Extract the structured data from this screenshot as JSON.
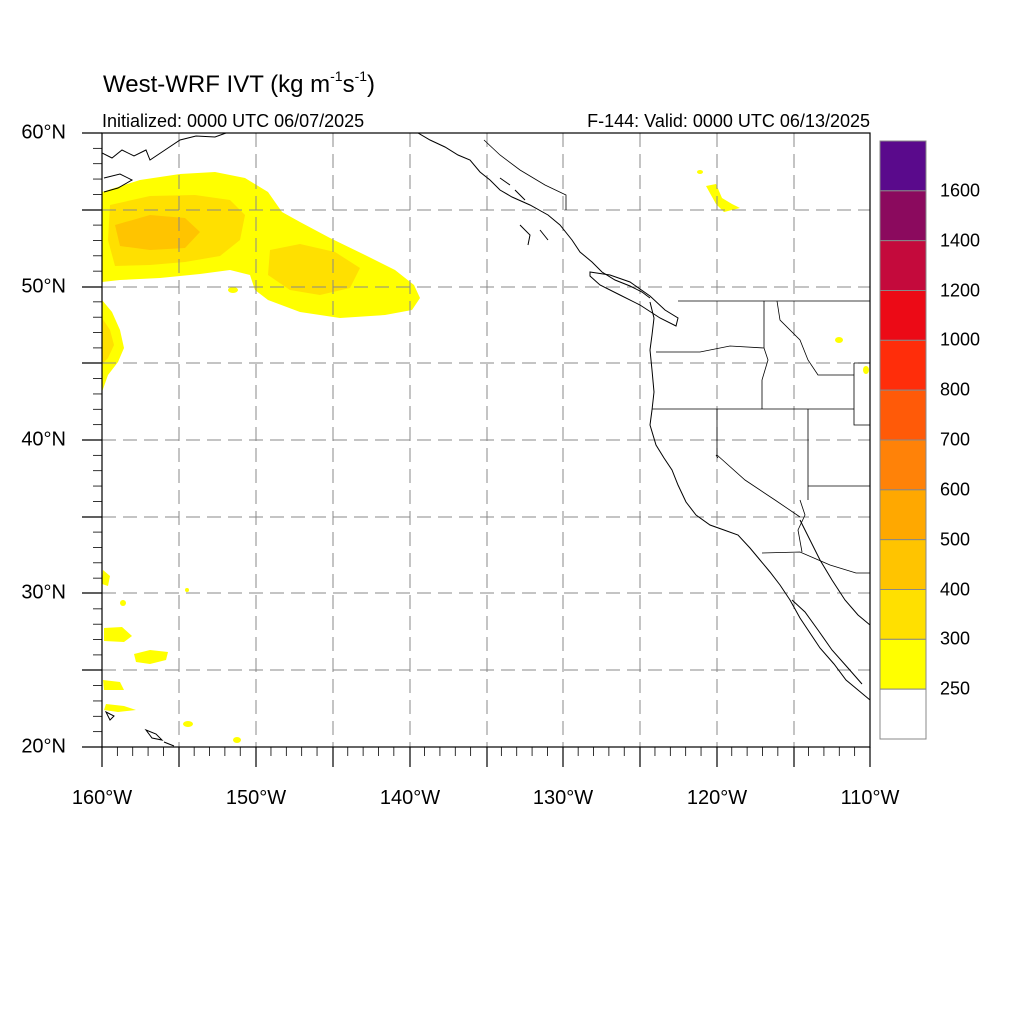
{
  "title": {
    "main": "West-WRF IVT (kg m",
    "sup1": "-1",
    "mid": "s",
    "sup2": "-1",
    "end": ")"
  },
  "init_text": "Initialized: 0000 UTC 06/07/2025",
  "valid_text": "F-144: Valid: 0000 UTC 06/13/2025",
  "map": {
    "lon_range": [
      -160,
      -110
    ],
    "lat_range": [
      20,
      60
    ],
    "grid": "dashed every 5 degrees"
  },
  "lat_labels": [
    "60°N",
    "50°N",
    "40°N",
    "30°N",
    "20°N"
  ],
  "lon_labels": [
    "160°W",
    "150°W",
    "140°W",
    "130°W",
    "120°W",
    "110°W"
  ],
  "colorbar": {
    "labels": [
      "1600",
      "1400",
      "1200",
      "1000",
      "800",
      "700",
      "600",
      "500",
      "400",
      "300",
      "250"
    ],
    "colors": [
      "#5a0a8c",
      "#8b0a5e",
      "#c40a3c",
      "#ec0a16",
      "#ff2d0a",
      "#ff5a08",
      "#ff8208",
      "#ffa800",
      "#ffc400",
      "#ffe000",
      "#ffff00",
      "#ffffff"
    ]
  }
}
